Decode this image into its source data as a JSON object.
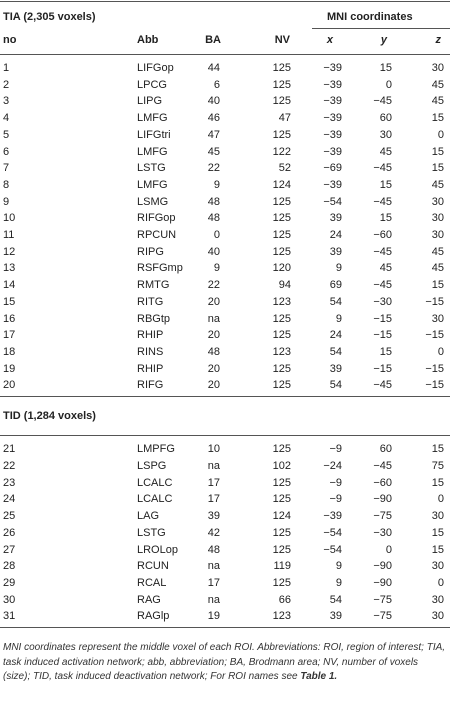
{
  "header": {
    "group": "MNI coordinates",
    "columns": [
      "no",
      "Abb",
      "BA",
      "NV",
      "x",
      "y",
      "z"
    ]
  },
  "sections": [
    {
      "title": "TIA (2,305 voxels)",
      "rows": [
        [
          "1",
          "LIFGop",
          "44",
          "125",
          "−39",
          "15",
          "30"
        ],
        [
          "2",
          "LPCG",
          "6",
          "125",
          "−39",
          "0",
          "45"
        ],
        [
          "3",
          "LIPG",
          "40",
          "125",
          "−39",
          "−45",
          "45"
        ],
        [
          "4",
          "LMFG",
          "46",
          "47",
          "−39",
          "60",
          "15"
        ],
        [
          "5",
          "LIFGtri",
          "47",
          "125",
          "−39",
          "30",
          "0"
        ],
        [
          "6",
          "LMFG",
          "45",
          "122",
          "−39",
          "45",
          "15"
        ],
        [
          "7",
          "LSTG",
          "22",
          "52",
          "−69",
          "−45",
          "15"
        ],
        [
          "8",
          "LMFG",
          "9",
          "124",
          "−39",
          "15",
          "45"
        ],
        [
          "9",
          "LSMG",
          "48",
          "125",
          "−54",
          "−45",
          "30"
        ],
        [
          "10",
          "RIFGop",
          "48",
          "125",
          "39",
          "15",
          "30"
        ],
        [
          "11",
          "RPCUN",
          "0",
          "125",
          "24",
          "−60",
          "30"
        ],
        [
          "12",
          "RIPG",
          "40",
          "125",
          "39",
          "−45",
          "45"
        ],
        [
          "13",
          "RSFGmp",
          "9",
          "120",
          "9",
          "45",
          "45"
        ],
        [
          "14",
          "RMTG",
          "22",
          "94",
          "69",
          "−45",
          "15"
        ],
        [
          "15",
          "RITG",
          "20",
          "123",
          "54",
          "−30",
          "−15"
        ],
        [
          "16",
          "RBGtp",
          "na",
          "125",
          "9",
          "−15",
          "30"
        ],
        [
          "17",
          "RHIP",
          "20",
          "125",
          "24",
          "−15",
          "−15"
        ],
        [
          "18",
          "RINS",
          "48",
          "123",
          "54",
          "15",
          "0"
        ],
        [
          "19",
          "RHIP",
          "20",
          "125",
          "39",
          "−15",
          "−15"
        ],
        [
          "20",
          "RIFG",
          "20",
          "125",
          "54",
          "−45",
          "−15"
        ]
      ]
    },
    {
      "title": "TID (1,284 voxels)",
      "rows": [
        [
          "21",
          "LMPFG",
          "10",
          "125",
          "−9",
          "60",
          "15"
        ],
        [
          "22",
          "LSPG",
          "na",
          "102",
          "−24",
          "−45",
          "75"
        ],
        [
          "23",
          "LCALC",
          "17",
          "125",
          "−9",
          "−60",
          "15"
        ],
        [
          "24",
          "LCALC",
          "17",
          "125",
          "−9",
          "−90",
          "0"
        ],
        [
          "25",
          "LAG",
          "39",
          "124",
          "−39",
          "−75",
          "30"
        ],
        [
          "26",
          "LSTG",
          "42",
          "125",
          "−54",
          "−30",
          "15"
        ],
        [
          "27",
          "LROLop",
          "48",
          "125",
          "−54",
          "0",
          "15"
        ],
        [
          "28",
          "RCUN",
          "na",
          "119",
          "9",
          "−90",
          "30"
        ],
        [
          "29",
          "RCAL",
          "17",
          "125",
          "9",
          "−90",
          "0"
        ],
        [
          "30",
          "RAG",
          "na",
          "66",
          "54",
          "−75",
          "30"
        ],
        [
          "31",
          "RAGlp",
          "19",
          "123",
          "39",
          "−75",
          "30"
        ]
      ]
    }
  ],
  "footnote": {
    "text": "MNI coordinates represent the middle voxel of each ROI. Abbreviations: ROI, region of interest; TIA, task induced activation network; abb, abbreviation; BA, Brodmann area; NV, number of voxels (size); TID, task induced deactivation network; For ROI names see",
    "ref": "Table 1."
  }
}
